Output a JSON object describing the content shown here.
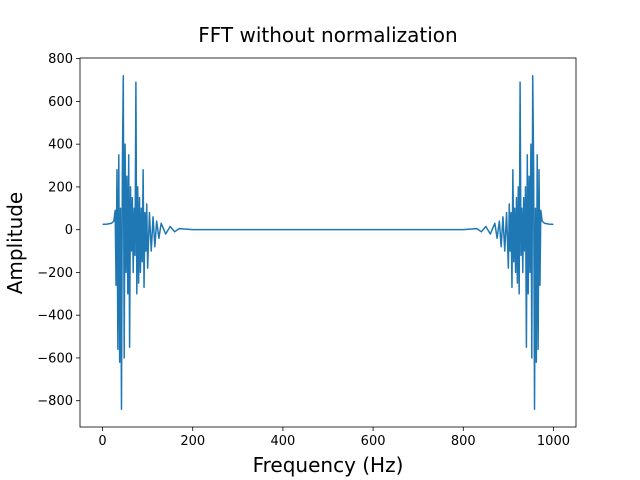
{
  "chart_data": {
    "type": "line",
    "title": "FFT without normalization",
    "xlabel": "Frequency (Hz)",
    "ylabel": "Amplitude",
    "x": [
      0,
      10,
      20,
      25,
      28,
      30,
      32,
      34,
      36,
      38,
      40,
      42,
      44,
      46,
      48,
      50,
      52,
      54,
      56,
      58,
      60,
      62,
      64,
      66,
      68,
      70,
      72,
      74,
      76,
      78,
      80,
      82,
      84,
      86,
      88,
      90,
      92,
      94,
      96,
      98,
      100,
      104,
      108,
      112,
      116,
      120,
      125,
      130,
      140,
      150,
      160,
      170,
      200,
      800,
      830,
      840,
      850,
      860,
      870,
      875,
      880,
      884,
      888,
      892,
      896,
      900,
      902,
      904,
      906,
      908,
      910,
      912,
      914,
      916,
      918,
      920,
      922,
      924,
      926,
      928,
      930,
      932,
      934,
      936,
      938,
      940,
      942,
      944,
      946,
      948,
      950,
      952,
      954,
      956,
      958,
      960,
      962,
      964,
      966,
      968,
      970,
      972,
      975,
      980,
      990,
      1000
    ],
    "series": [
      {
        "color": "#1f77b4",
        "values": [
          25,
          26,
          30,
          40,
          90,
          -260,
          280,
          -560,
          350,
          -620,
          100,
          -840,
          300,
          720,
          -600,
          400,
          -200,
          250,
          -300,
          350,
          -550,
          200,
          -100,
          150,
          -200,
          100,
          -120,
          690,
          -300,
          200,
          -250,
          150,
          -200,
          100,
          -150,
          280,
          -270,
          80,
          -100,
          120,
          -180,
          80,
          -100,
          60,
          -80,
          40,
          -40,
          30,
          -20,
          15,
          -10,
          5,
          0,
          0,
          5,
          -10,
          15,
          -20,
          30,
          -40,
          40,
          -80,
          60,
          -100,
          80,
          -180,
          120,
          -100,
          80,
          -270,
          280,
          -150,
          100,
          -200,
          150,
          -250,
          200,
          -300,
          690,
          -120,
          100,
          -200,
          150,
          -100,
          200,
          -550,
          350,
          -300,
          250,
          -200,
          400,
          -600,
          720,
          300,
          -840,
          100,
          -620,
          350,
          -560,
          280,
          -260,
          90,
          40,
          30,
          26,
          25
        ]
      }
    ],
    "xlim": [
      -50,
      1050
    ],
    "ylim": [
      -923,
      803
    ],
    "xticks": [
      0,
      200,
      400,
      600,
      800,
      1000
    ],
    "yticks": [
      {
        "value": -800,
        "label": "−800"
      },
      {
        "value": -600,
        "label": "−600"
      },
      {
        "value": -400,
        "label": "−400"
      },
      {
        "value": -200,
        "label": "−200"
      },
      0,
      200,
      400,
      600,
      800
    ]
  }
}
